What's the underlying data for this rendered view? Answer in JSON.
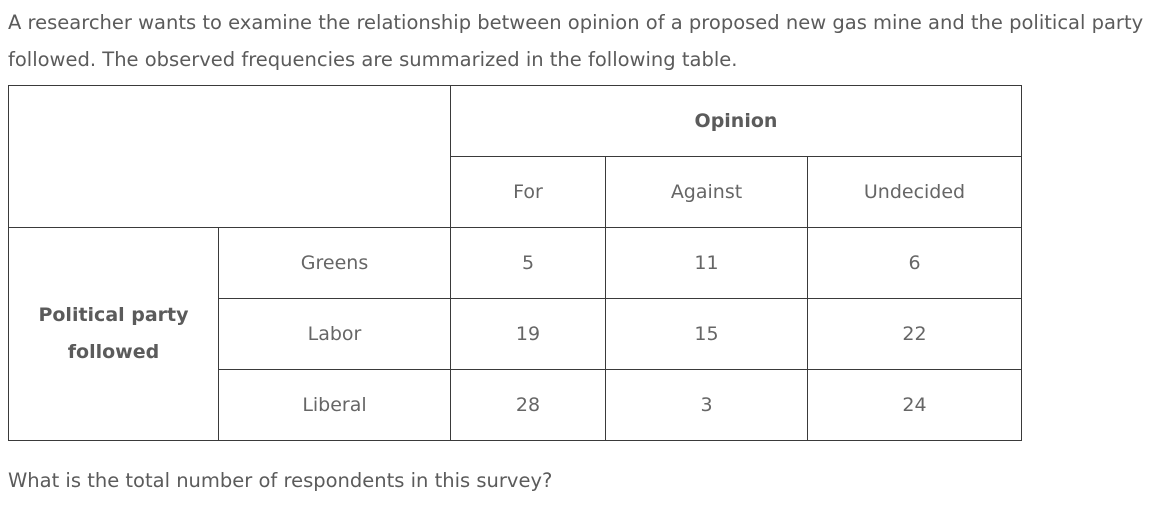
{
  "intro": {
    "line1": "A researcher wants to examine the relationship between opinion of a proposed new gas mine and the political party",
    "line2": "followed. The observed frequencies are summarized in the following table."
  },
  "table": {
    "column_group_header": "Opinion",
    "columns": [
      "For",
      "Against",
      "Undecided"
    ],
    "row_group_header_line1": "Political party",
    "row_group_header_line2": "followed",
    "rows": [
      {
        "label": "Greens",
        "values": [
          "5",
          "11",
          "6"
        ]
      },
      {
        "label": "Labor",
        "values": [
          "19",
          "15",
          "22"
        ]
      },
      {
        "label": "Liberal",
        "values": [
          "28",
          "3",
          "24"
        ]
      }
    ]
  },
  "question": "What is the total number of respondents in this survey?"
}
